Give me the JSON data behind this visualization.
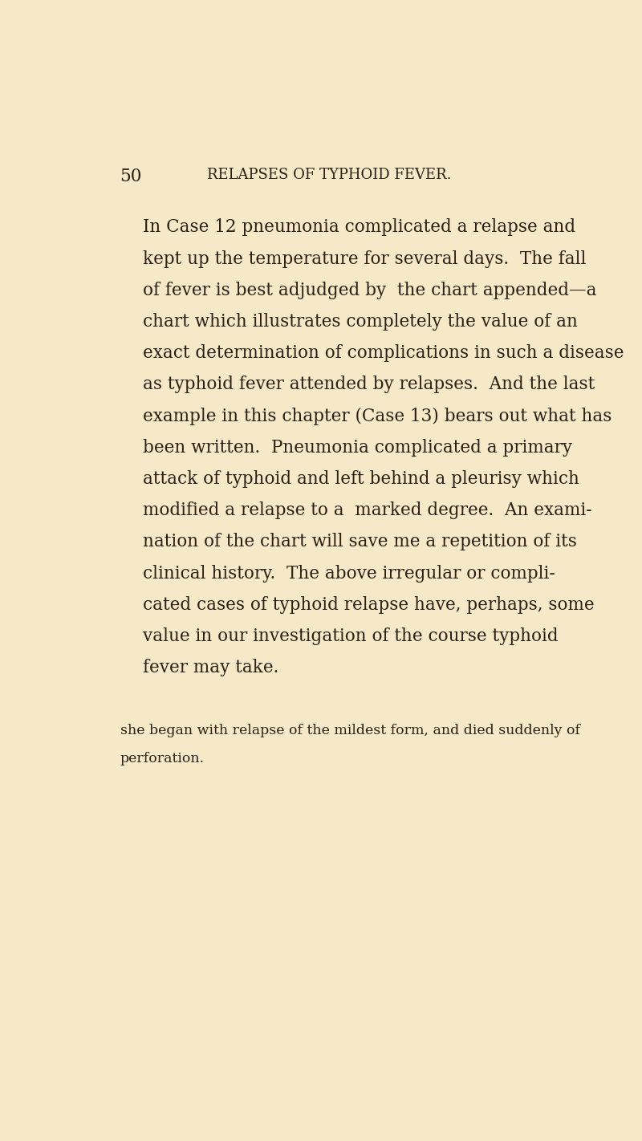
{
  "background_color": "#f5e9c8",
  "page_number": "50",
  "header": "RELAPSES OF TYPHOID FEVER.",
  "text_color": "#2b2016",
  "header_color": "#2b2016",
  "page_num_color": "#2b2016",
  "font_size_main": 15.5,
  "font_size_header": 13.0,
  "font_size_page_num": 15.5,
  "font_size_footnote": 12.5,
  "main_lines": [
    "In Case 12 pneumonia complicated a relapse and",
    "kept up the temperature for several days.  The fall",
    "of fever is best adjudged by  the chart appended—a",
    "chart which illustrates completely the value of an",
    "exact determination of complications in such a disease",
    "as typhoid fever attended by relapses.  And the last",
    "example in this chapter (Case 13) bears out what has",
    "been written.  Pneumonia complicated a primary",
    "attack of typhoid and left behind a pleurisy which",
    "modified a relapse to a  marked degree.  An exami-",
    "nation of the chart will save me a repetition of its",
    "clinical history.  The above irregular or compli-",
    "cated cases of typhoid relapse have, perhaps, some",
    "value in our investigation of the course typhoid",
    "fever may take."
  ],
  "footnote_lines": [
    "she began with relapse of the mildest form, and died suddenly of",
    "perforation."
  ]
}
